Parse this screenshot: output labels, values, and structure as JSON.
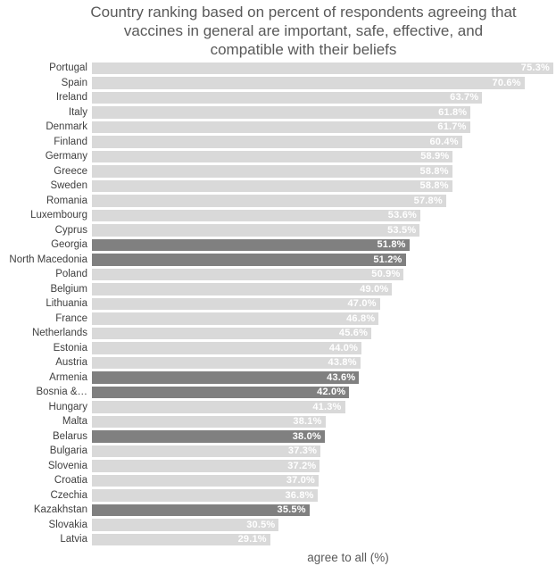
{
  "chart_data": {
    "type": "bar",
    "orientation": "horizontal",
    "title": "Country ranking based on percent of respondents agreeing that vaccines in general are important, safe, effective, and compatible with their beliefs",
    "title_lines": [
      "Country ranking based on percent of respondents agreeing that",
      "vaccines in general are important, safe, effective, and",
      "compatible with their beliefs"
    ],
    "xlabel": "agree to all (%)",
    "ylabel": "",
    "xlim": [
      0,
      75.3
    ],
    "grid": false,
    "legend": false,
    "value_suffix": "%",
    "colors": {
      "bar_default": "#d9d9d9",
      "bar_highlight": "#808080",
      "value_label": "#ffffff",
      "category_label": "#404040",
      "title": "#595959",
      "axis_label": "#595959",
      "background": "#ffffff"
    },
    "categories": [
      "Portugal",
      "Spain",
      "Ireland",
      "Italy",
      "Denmark",
      "Finland",
      "Germany",
      "Greece",
      "Sweden",
      "Romania",
      "Luxembourg",
      "Cyprus",
      "Georgia",
      "North Macedonia",
      "Poland",
      "Belgium",
      "Lithuania",
      "France",
      "Netherlands",
      "Estonia",
      "Austria",
      "Armenia",
      "Bosnia &…",
      "Hungary",
      "Malta",
      "Belarus",
      "Bulgaria",
      "Slovenia",
      "Croatia",
      "Czechia",
      "Kazakhstan",
      "Slovakia",
      "Latvia"
    ],
    "values": [
      75.3,
      70.6,
      63.7,
      61.8,
      61.7,
      60.4,
      58.9,
      58.8,
      58.8,
      57.8,
      53.6,
      53.5,
      51.8,
      51.2,
      50.9,
      49.0,
      47.0,
      46.8,
      45.6,
      44.0,
      43.8,
      43.6,
      42.0,
      41.3,
      38.1,
      38.0,
      37.3,
      37.2,
      37.0,
      36.8,
      35.5,
      30.5,
      29.1
    ],
    "highlighted": [
      false,
      false,
      false,
      false,
      false,
      false,
      false,
      false,
      false,
      false,
      false,
      false,
      true,
      true,
      false,
      false,
      false,
      false,
      false,
      false,
      false,
      true,
      true,
      false,
      false,
      true,
      false,
      false,
      false,
      false,
      true,
      false,
      false
    ]
  }
}
